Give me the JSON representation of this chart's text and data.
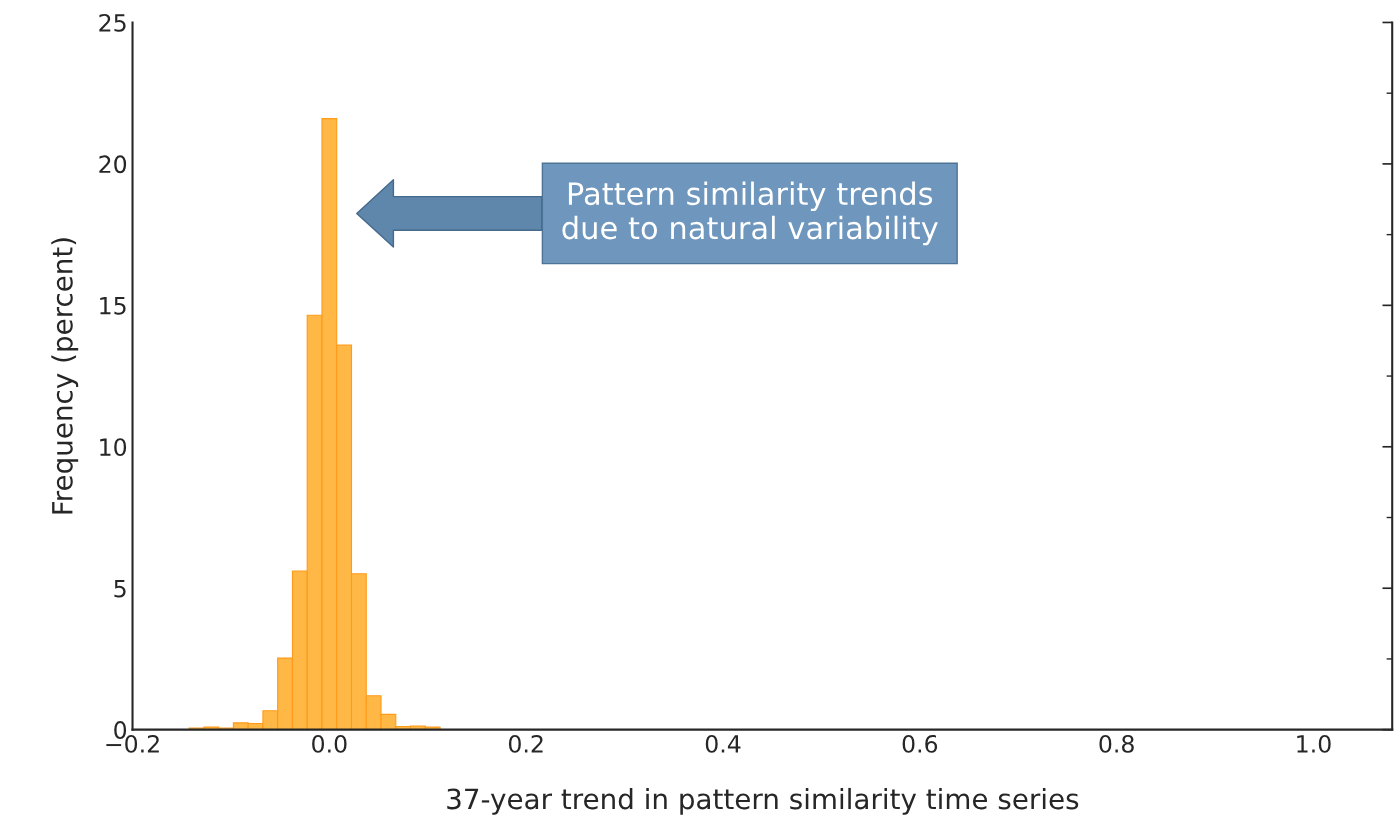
{
  "chart_data": {
    "type": "histogram",
    "xlabel": "37-year trend in pattern similarity time series",
    "ylabel": "Frequency (percent)",
    "annotations": [
      "Pattern similarity trends\ndue to natural variability"
    ],
    "bins": [
      -0.1425,
      -0.1275,
      -0.1125,
      -0.0975,
      -0.0825,
      -0.0675,
      -0.0525,
      -0.0375,
      -0.0225,
      -0.0075,
      0.0075,
      0.0225,
      0.0375,
      0.0525,
      0.0675,
      0.0825,
      0.0975,
      0.1125
    ],
    "values": [
      0.06,
      0.09,
      0.06,
      0.24,
      0.22,
      0.67,
      2.53,
      5.61,
      14.65,
      21.6,
      13.6,
      5.51,
      1.2,
      0.54,
      0.11,
      0.13,
      0.09
    ],
    "color": "#ffb845",
    "xlim": [
      -0.2,
      1.08
    ],
    "xticks": [
      {
        "value": -0.2,
        "label": "−0.2"
      },
      {
        "value": 0.0,
        "label": "0.0"
      },
      {
        "value": 0.2,
        "label": "0.2"
      },
      {
        "value": 0.4,
        "label": "0.4"
      },
      {
        "value": 0.6,
        "label": "0.6"
      },
      {
        "value": 0.8,
        "label": "0.8"
      },
      {
        "value": 1.0,
        "label": "1.0"
      }
    ],
    "ylim": [
      0,
      25
    ],
    "yticks": [
      0,
      5,
      10,
      15,
      20,
      25
    ],
    "grid": false,
    "legend": false
  }
}
